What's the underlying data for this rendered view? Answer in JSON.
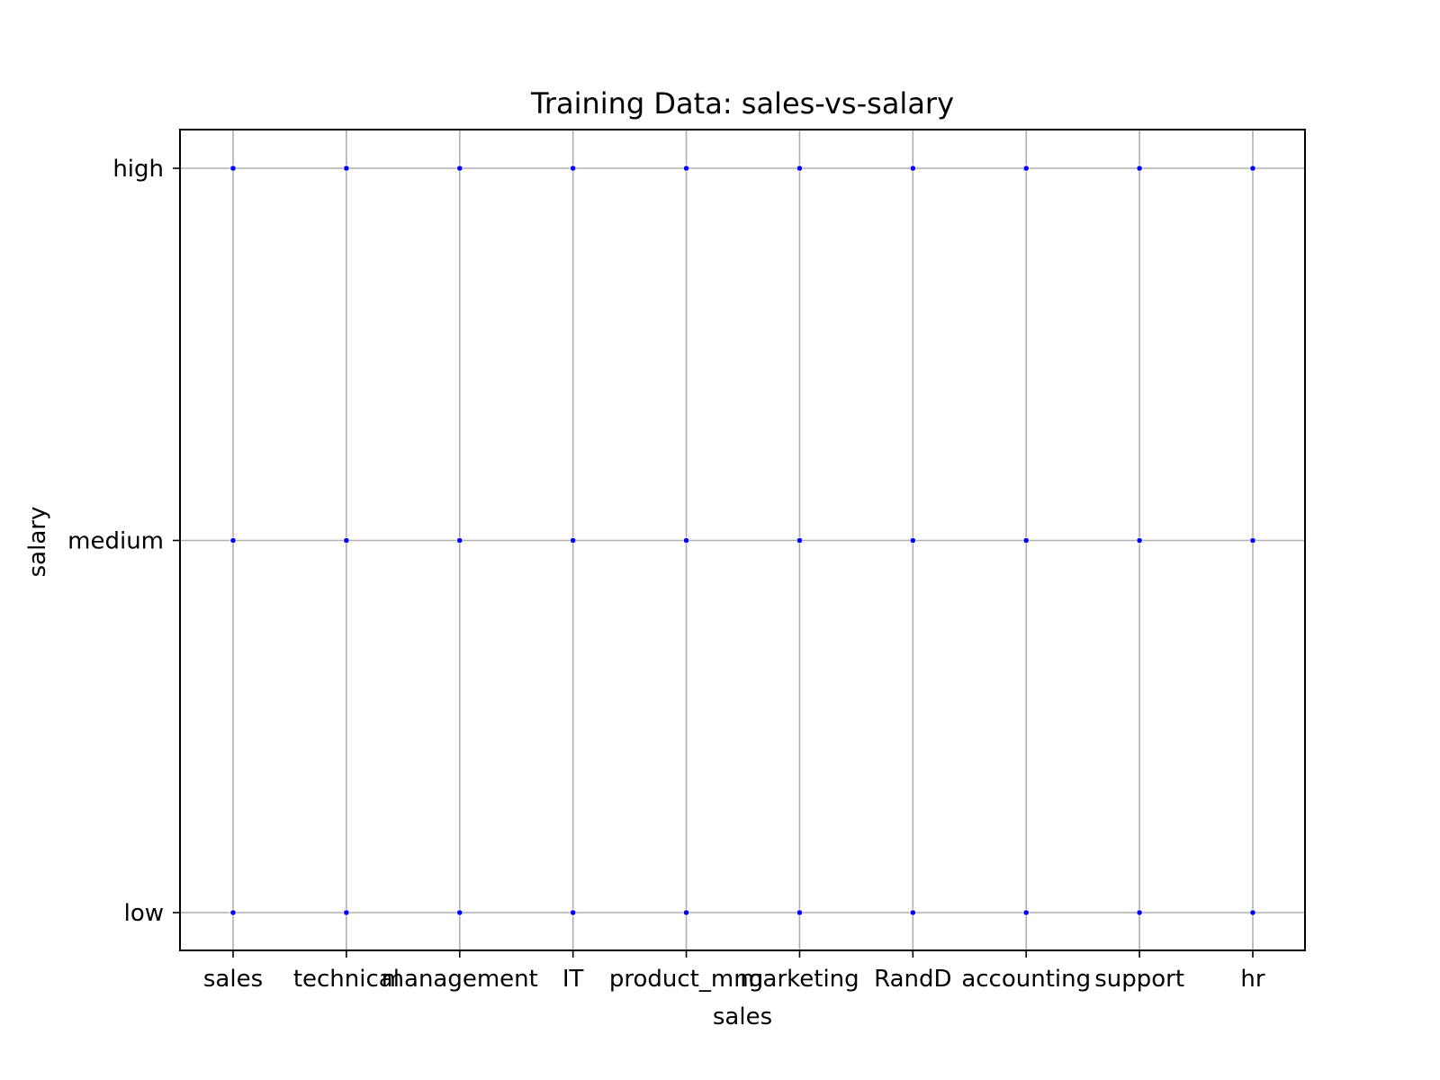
{
  "chart_data": {
    "type": "scatter",
    "title": "Training Data: sales-vs-salary",
    "xlabel": "sales",
    "ylabel": "salary",
    "x_categories": [
      "sales",
      "technical",
      "management",
      "IT",
      "product_mng",
      "marketing",
      "RandD",
      "accounting",
      "support",
      "hr"
    ],
    "y_categories": [
      "low",
      "medium",
      "high"
    ],
    "grid": true,
    "marker_color": "#0000ff",
    "points": [
      {
        "x": "sales",
        "y": "high"
      },
      {
        "x": "technical",
        "y": "high"
      },
      {
        "x": "management",
        "y": "high"
      },
      {
        "x": "IT",
        "y": "high"
      },
      {
        "x": "product_mng",
        "y": "high"
      },
      {
        "x": "marketing",
        "y": "high"
      },
      {
        "x": "RandD",
        "y": "high"
      },
      {
        "x": "accounting",
        "y": "high"
      },
      {
        "x": "support",
        "y": "high"
      },
      {
        "x": "hr",
        "y": "high"
      },
      {
        "x": "sales",
        "y": "medium"
      },
      {
        "x": "technical",
        "y": "medium"
      },
      {
        "x": "management",
        "y": "medium"
      },
      {
        "x": "IT",
        "y": "medium"
      },
      {
        "x": "product_mng",
        "y": "medium"
      },
      {
        "x": "marketing",
        "y": "medium"
      },
      {
        "x": "RandD",
        "y": "medium"
      },
      {
        "x": "accounting",
        "y": "medium"
      },
      {
        "x": "support",
        "y": "medium"
      },
      {
        "x": "hr",
        "y": "medium"
      },
      {
        "x": "sales",
        "y": "low"
      },
      {
        "x": "technical",
        "y": "low"
      },
      {
        "x": "management",
        "y": "low"
      },
      {
        "x": "IT",
        "y": "low"
      },
      {
        "x": "product_mng",
        "y": "low"
      },
      {
        "x": "marketing",
        "y": "low"
      },
      {
        "x": "RandD",
        "y": "low"
      },
      {
        "x": "accounting",
        "y": "low"
      },
      {
        "x": "support",
        "y": "low"
      },
      {
        "x": "hr",
        "y": "low"
      }
    ]
  }
}
